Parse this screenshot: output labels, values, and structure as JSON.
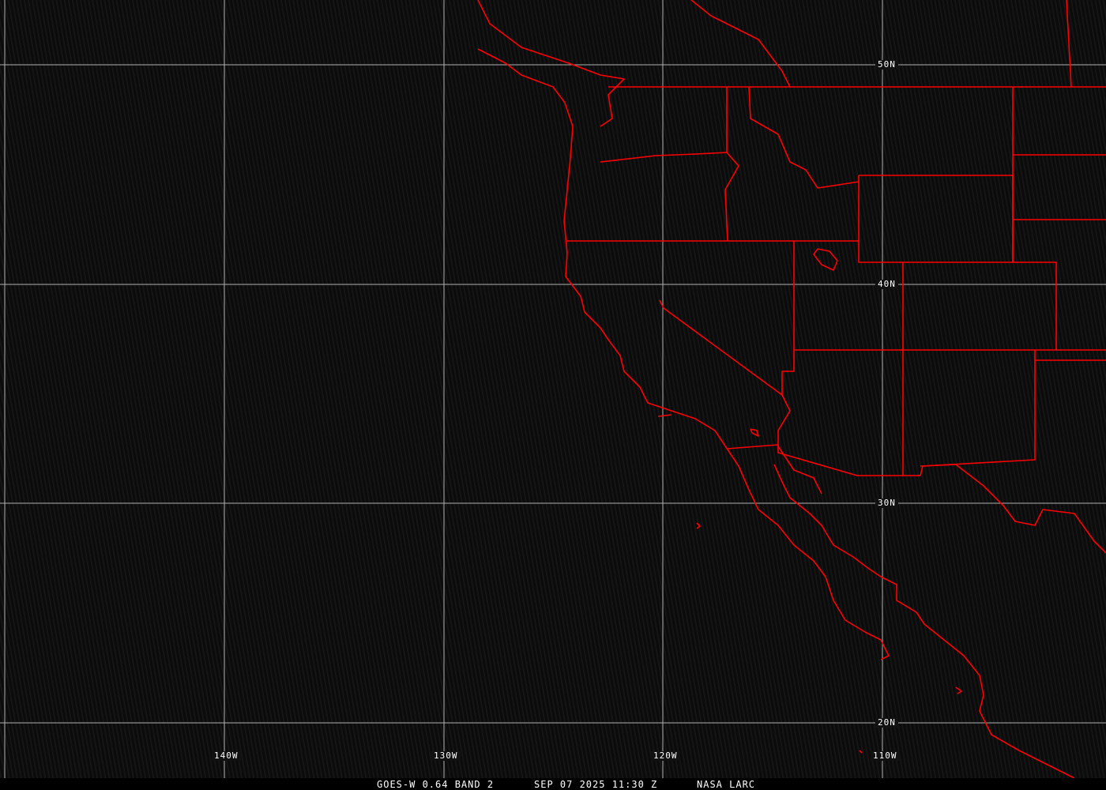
{
  "colors": {
    "borders": "#ff0000",
    "grid": "#b0b0b0",
    "background": "#0d0d0d",
    "text": "#ffffff"
  },
  "grid_labels": {
    "lat": [
      "50N",
      "40N",
      "30N",
      "20N"
    ],
    "lon": [
      "140W",
      "130W",
      "120W",
      "110W"
    ]
  },
  "footer": {
    "satellite": "GOES-W 0.64 BAND 2",
    "datetime": "SEP 07 2025 11:30 Z",
    "source": "NASA LARC"
  }
}
